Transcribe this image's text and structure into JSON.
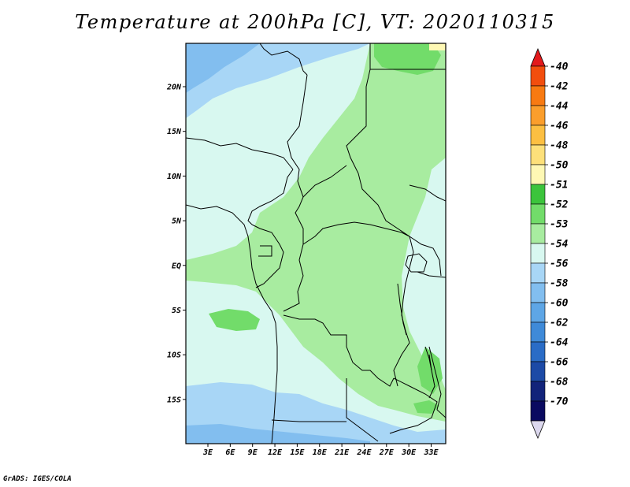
{
  "header": {
    "title": "Temperature at 200hPa [C], VT: 2020110315"
  },
  "footer": {
    "credit": "GrADS: IGES/COLA"
  },
  "map": {
    "lat_labels": [
      "20N",
      "15N",
      "10N",
      "5N",
      "EQ",
      "5S",
      "10S",
      "15S"
    ],
    "lon_labels": [
      "3E",
      "6E",
      "9E",
      "12E",
      "15E",
      "18E",
      "21E",
      "24E",
      "27E",
      "30E",
      "33E"
    ]
  },
  "colorbar": {
    "labels": [
      "-40",
      "-42",
      "-44",
      "-46",
      "-48",
      "-50",
      "-51",
      "-52",
      "-53",
      "-54",
      "-56",
      "-58",
      "-60",
      "-62",
      "-64",
      "-66",
      "-68",
      "-70"
    ],
    "colors": [
      "#e31a1c",
      "#f24e0e",
      "#f87a12",
      "#fb9e2c",
      "#fcbf42",
      "#fde07a",
      "#fef8b4",
      "#3cc43c",
      "#72dc6a",
      "#a8eca0",
      "#d8f8f0",
      "#a8d6f6",
      "#82beef",
      "#5ea6e6",
      "#3f8ad8",
      "#2a6cc6",
      "#1c4aa6",
      "#12237a",
      "#0a0a60",
      "#dcd8ee"
    ]
  }
}
